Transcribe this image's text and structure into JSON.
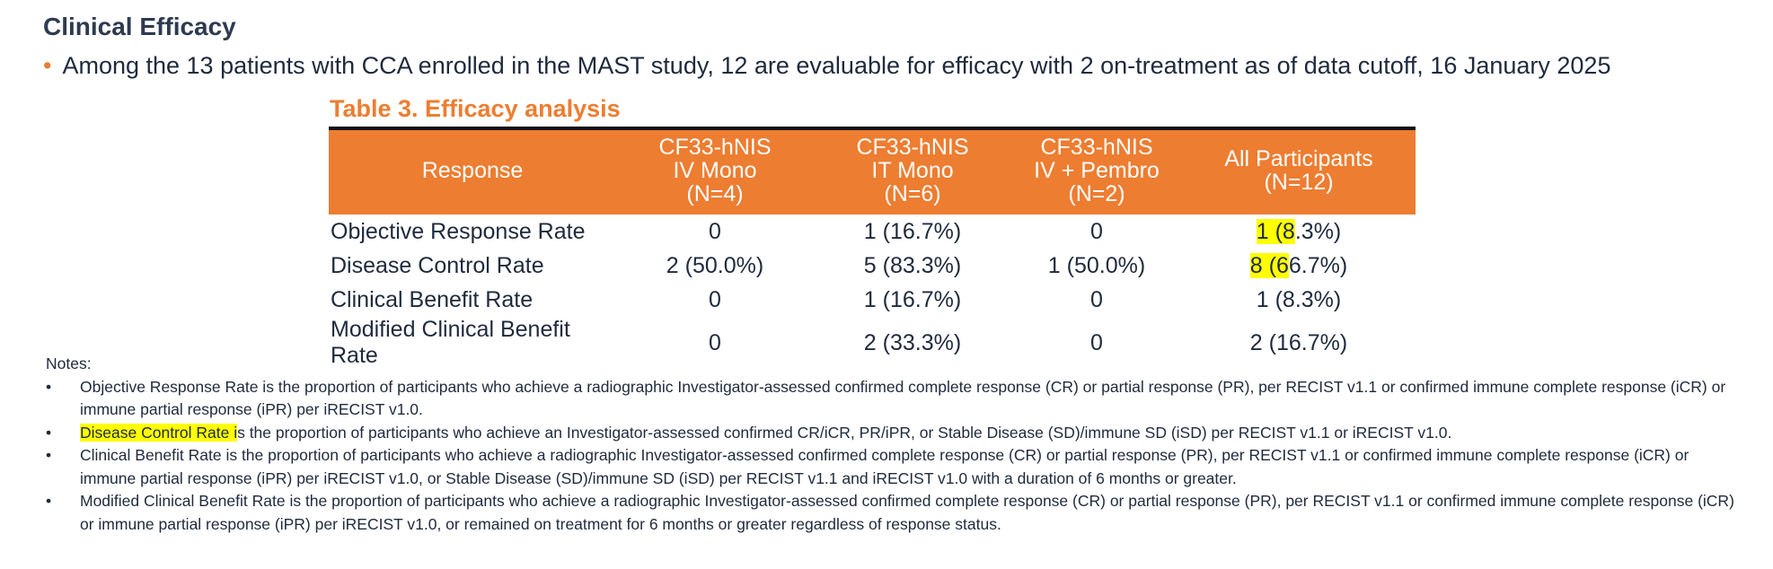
{
  "slide": {
    "title": "Clinical Efficacy",
    "intro": "Among the 13 patients with CCA enrolled in the MAST study, 12 are evaluable for efficacy with 2 on-treatment as of data cutoff, 16 January 2025"
  },
  "table": {
    "title": "Table 3. Efficacy analysis",
    "header": {
      "response": "Response",
      "col1": {
        "l1": "CF33-hNIS",
        "l2": "IV Mono",
        "l3": "(N=4)"
      },
      "col2": {
        "l1": "CF33-hNIS",
        "l2": "IT Mono",
        "l3": "(N=6)"
      },
      "col3": {
        "l1": "CF33-hNIS",
        "l2": "IV + Pembro",
        "l3": "(N=2)"
      },
      "col4": {
        "l1": "All Participants",
        "l2": "(N=12)"
      }
    },
    "rows": [
      {
        "label": "Objective Response Rate",
        "c1": "0",
        "c2": "1 (16.7%)",
        "c3": "0",
        "c4a": "1 (8",
        "c4b": ".3%)"
      },
      {
        "label": "Disease Control Rate",
        "c1": "2 (50.0%)",
        "c2": "5 (83.3%)",
        "c3": "1 (50.0%)",
        "c4a": "8 (6",
        "c4b": "6.7%)"
      },
      {
        "label": "Clinical Benefit Rate",
        "c1": "0",
        "c2": "1 (16.7%)",
        "c3": "0",
        "c4": "1 (8.3%)"
      },
      {
        "label": "Modified Clinical Benefit Rate",
        "c1": "0",
        "c2": "2 (33.3%)",
        "c3": "0",
        "c4": "2 (16.7%)"
      }
    ]
  },
  "notes": {
    "heading": "Notes:",
    "bullet": "•",
    "n1": "Objective Response Rate is the proportion of participants who achieve a radiographic Investigator-assessed confirmed complete response (CR) or partial response (PR), per RECIST v1.1 or confirmed immune complete response (iCR) or immune partial response (iPR) per iRECIST v1.0.",
    "n2_hl": "Disease Control Rate i",
    "n2_rest": "s the proportion of participants who achieve an Investigator-assessed confirmed CR/iCR, PR/iPR, or Stable Disease (SD)/immune SD (iSD) per RECIST v1.1 or iRECIST v1.0.",
    "n3": "Clinical Benefit Rate is the proportion of participants who achieve a radiographic Investigator-assessed confirmed complete response (CR) or partial response (PR), per RECIST v1.1 or confirmed immune complete response (iCR) or immune partial response (iPR) per iRECIST v1.0, or Stable Disease (SD)/immune SD (iSD) per RECIST v1.1 and iRECIST v1.0 with a duration of 6 months or greater.",
    "n4": "Modified Clinical Benefit Rate is the proportion of participants who achieve a radiographic Investigator-assessed confirmed complete response (CR) or partial response (PR), per RECIST v1.1 or confirmed immune complete response (iCR) or immune partial response (iPR) per iRECIST v1.0, or remained on treatment for 6 months or greater regardless of response status."
  },
  "colors": {
    "accent": "#ed7d31",
    "highlight": "#ffff00",
    "text": "#1f2a3d"
  }
}
